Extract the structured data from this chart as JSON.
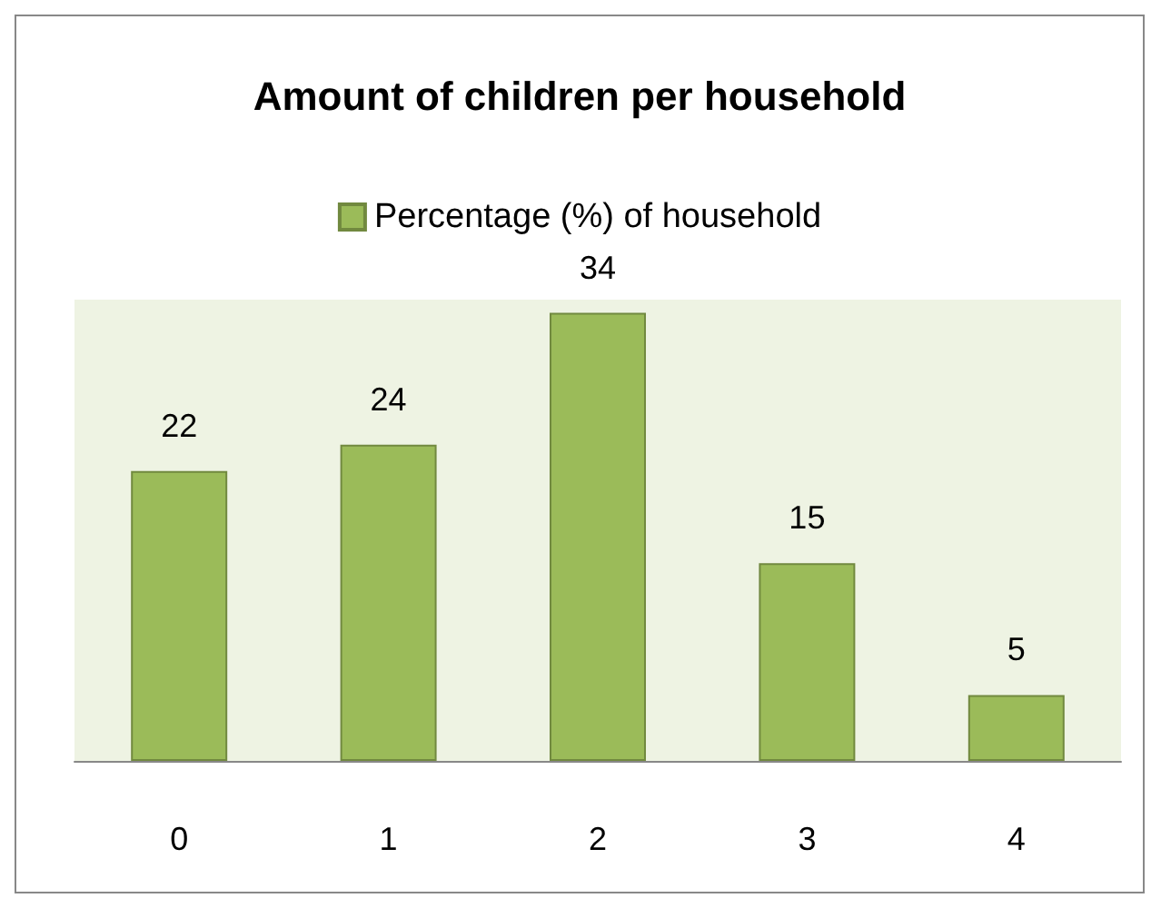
{
  "chart_data": {
    "type": "bar",
    "title": "Amount of children per household",
    "categories": [
      "0",
      "1",
      "2",
      "3",
      "4"
    ],
    "series": [
      {
        "name": "Percentage (%) of household",
        "color": "#9bbb59",
        "values": [
          22,
          24,
          34,
          15,
          5
        ]
      }
    ],
    "data_labels": true,
    "legend": "top"
  }
}
